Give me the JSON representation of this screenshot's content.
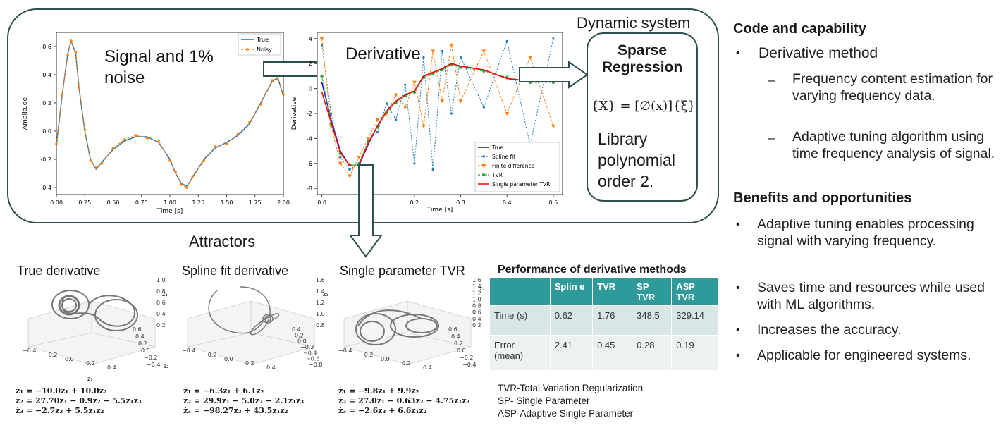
{
  "dynamic_system": {
    "title": "Dynamic system",
    "signal_label": "Signal and 1% noise",
    "derivative_label": "Derivative",
    "regression": {
      "title": "Sparse Regression",
      "equation": "{Ẋ} = [∅(x)]{ξ}",
      "library": "Library polynomial order 2."
    }
  },
  "signal_plot": {
    "xlabel": "Time [s]",
    "ylabel": "Amplitude",
    "xticks": [
      "0.00",
      "0.25",
      "0.50",
      "0.75",
      "1.00",
      "1.25",
      "1.50",
      "1.75",
      "2.00"
    ],
    "yticks": [
      "0.6",
      "0.4",
      "0.2",
      "0.0",
      "-0.2",
      "-0.4"
    ],
    "legend": [
      "True",
      "Noisy"
    ]
  },
  "derivative_plot": {
    "xlabel": "Time [s]",
    "ylabel": "Derivative",
    "xticks": [
      "0.0",
      "0.1",
      "0.2",
      "0.3",
      "0.4",
      "0.5"
    ],
    "yticks": [
      "4",
      "2",
      "0",
      "-2",
      "-4",
      "-6",
      "-8"
    ],
    "legend": [
      "True",
      "Spline fit",
      "Finite difference",
      "TVR",
      "Single parameter TVR"
    ]
  },
  "attractors": {
    "title": "Attractors",
    "panels": [
      {
        "title": "True derivative",
        "eq": [
          "ż₁ = −10.0z₁ + 10.0z₂",
          "ż₂ = 27.70z₁ − 0.9z₂ − 5.5z₁z₃",
          "ż₃ = −2.7z₃ + 5.5z₁z₂"
        ],
        "zticks": [
          "1.0",
          "0.8",
          "0.6",
          "0.4",
          "0.2"
        ],
        "yticks": [
          "0.6",
          "0.4",
          "0.2",
          "0.0",
          "−0.2",
          "−0.4"
        ],
        "xticks": [
          "−0.4",
          "−0.2",
          "0.0",
          "0.2",
          "0.4"
        ]
      },
      {
        "title": "Spline fit derivative",
        "eq": [
          "ż₁ = −6.3z₁ + 6.1z₂",
          "ż₂ = 29.9z₁ − 5.0z₂ − 2.1z₁z₃",
          "ż₃ = −98.27z₃ + 43.5z₁z₂"
        ],
        "zticks": [
          "1.6",
          "1.4",
          "1.2",
          "1.0",
          "0.8"
        ],
        "yticks": [
          "0.4",
          "0.2",
          "0.0",
          "−0.2",
          "−0.4",
          "−0.6",
          "−0.8"
        ],
        "xticks": [
          "−0.4",
          "−0.2",
          "0.0",
          "0.2",
          "0.4"
        ]
      },
      {
        "title": "Single parameter TVR",
        "eq": [
          "ż₁ = −9.8z₁ + 9.9z₂",
          "ż₂ = 27.0z₁ − 0.63z₂ − 4.75z₁z₃",
          "ż₃ = −2.6z₃ + 6.6z₁z₂"
        ],
        "zticks": [
          "1.6",
          "1.4",
          "1.2",
          "1.0",
          "0.8",
          "0.6",
          "0.4",
          "0.2"
        ],
        "yticks": [
          "0.6",
          "0.4",
          "0.2",
          "0.0",
          "−0.2",
          "−0.4"
        ],
        "xticks": [
          "−0.4",
          "−0.2",
          "0.0",
          "0.2",
          "0.4"
        ]
      }
    ]
  },
  "performance": {
    "title": "Performance of derivative methods",
    "headers": [
      "",
      "Splin e",
      "TVR",
      "SP TVR",
      "ASP TVR"
    ],
    "rows": [
      [
        "Time (s)",
        "0.62",
        "1.76",
        "348.5",
        "329.14"
      ],
      [
        "Error (mean)",
        "2.41",
        "0.45",
        "0.28",
        "0.19"
      ]
    ],
    "notes": [
      "TVR-Total Variation Regularization",
      "SP- Single Parameter",
      "ASP-Adaptive Single Parameter"
    ]
  },
  "right_panel": {
    "code_heading": "Code and capability",
    "code_bullet": "Derivative method",
    "code_sub": [
      "Frequency content estimation for varying frequency data.",
      "Adaptive tuning algorithm using time frequency analysis of signal."
    ],
    "benefits_heading": "Benefits and opportunities",
    "benefits": [
      "Adaptive tuning enables processing signal with varying frequency.",
      "Saves time and resources while used with ML algorithms.",
      "Increases the accuracy.",
      "Applicable for engineered systems."
    ]
  },
  "chart_data": [
    {
      "type": "line",
      "title": "",
      "xlabel": "Time [s]",
      "ylabel": "Amplitude",
      "xlim": [
        0,
        2.0
      ],
      "ylim": [
        -0.45,
        0.7
      ],
      "series": [
        {
          "name": "True",
          "x": [
            0,
            0.05,
            0.1,
            0.13,
            0.17,
            0.2,
            0.25,
            0.3,
            0.35,
            0.4,
            0.5,
            0.6,
            0.7,
            0.8,
            0.9,
            1.0,
            1.05,
            1.1,
            1.15,
            1.2,
            1.3,
            1.4,
            1.5,
            1.6,
            1.7,
            1.8,
            1.9,
            1.95,
            2.0
          ],
          "y": [
            -0.1,
            0.25,
            0.55,
            0.64,
            0.55,
            0.3,
            0.0,
            -0.2,
            -0.27,
            -0.22,
            -0.13,
            -0.07,
            -0.04,
            -0.04,
            -0.08,
            -0.2,
            -0.3,
            -0.37,
            -0.39,
            -0.33,
            -0.2,
            -0.12,
            -0.08,
            -0.03,
            0.05,
            0.2,
            0.35,
            0.38,
            0.25
          ]
        },
        {
          "name": "Noisy",
          "x": [
            0,
            0.05,
            0.1,
            0.13,
            0.17,
            0.2,
            0.25,
            0.3,
            0.35,
            0.4,
            0.5,
            0.6,
            0.7,
            0.8,
            0.9,
            1.0,
            1.05,
            1.1,
            1.15,
            1.2,
            1.3,
            1.4,
            1.5,
            1.6,
            1.7,
            1.8,
            1.9,
            1.95,
            2.0
          ],
          "y": [
            -0.09,
            0.26,
            0.54,
            0.64,
            0.56,
            0.31,
            0.01,
            -0.21,
            -0.26,
            -0.23,
            -0.12,
            -0.06,
            -0.03,
            -0.05,
            -0.07,
            -0.21,
            -0.29,
            -0.38,
            -0.4,
            -0.32,
            -0.21,
            -0.11,
            -0.09,
            -0.02,
            0.06,
            0.19,
            0.36,
            0.37,
            0.26
          ]
        }
      ]
    },
    {
      "type": "line",
      "title": "",
      "xlabel": "Time [s]",
      "ylabel": "Derivative",
      "xlim": [
        -0.01,
        0.52
      ],
      "ylim": [
        -8.5,
        4.5
      ],
      "series": [
        {
          "name": "True",
          "x": [
            0.0,
            0.02,
            0.04,
            0.06,
            0.08,
            0.1,
            0.12,
            0.14,
            0.16,
            0.18,
            0.2,
            0.22,
            0.24,
            0.26,
            0.28,
            0.3,
            0.35,
            0.4,
            0.45,
            0.5
          ],
          "y": [
            0.5,
            -2.5,
            -5.0,
            -6.2,
            -6.2,
            -4.5,
            -3.0,
            -1.8,
            -1.0,
            -0.5,
            -0.2,
            1.0,
            1.3,
            1.6,
            2.0,
            1.8,
            1.5,
            0.8,
            0.6,
            0.6
          ]
        },
        {
          "name": "Spline fit",
          "x": [
            0.0,
            0.02,
            0.04,
            0.06,
            0.08,
            0.1,
            0.12,
            0.14,
            0.16,
            0.18,
            0.2,
            0.22,
            0.24,
            0.26,
            0.28,
            0.3,
            0.35,
            0.4,
            0.45,
            0.5
          ],
          "y": [
            3.5,
            -2.0,
            -5.5,
            -6.5,
            -6.0,
            -4.2,
            -3.5,
            -1.2,
            -2.5,
            0.3,
            -6.0,
            2.5,
            -6.5,
            3.0,
            -2.0,
            2.5,
            -1.5,
            3.8,
            -4.5,
            4.0
          ]
        },
        {
          "name": "Finite difference",
          "x": [
            0.0,
            0.02,
            0.04,
            0.06,
            0.08,
            0.1,
            0.12,
            0.14,
            0.16,
            0.18,
            0.2,
            0.22,
            0.24,
            0.26,
            0.28,
            0.3,
            0.35,
            0.4,
            0.45,
            0.5
          ],
          "y": [
            4.0,
            -3.0,
            -6.0,
            -7.0,
            -5.5,
            -4.0,
            -2.5,
            -2.0,
            -0.5,
            -1.5,
            0.5,
            -3.0,
            3.0,
            -1.0,
            3.5,
            -1.0,
            3.0,
            -2.0,
            2.5,
            -3.0
          ]
        },
        {
          "name": "TVR",
          "x": [
            0.0,
            0.02,
            0.04,
            0.06,
            0.08,
            0.1,
            0.12,
            0.14,
            0.16,
            0.18,
            0.2,
            0.22,
            0.24,
            0.26,
            0.28,
            0.3,
            0.35,
            0.4,
            0.45,
            0.5
          ],
          "y": [
            1.0,
            -2.8,
            -5.2,
            -6.1,
            -6.1,
            -4.3,
            -3.1,
            -1.9,
            -1.1,
            -0.6,
            -0.3,
            0.9,
            1.2,
            1.5,
            1.9,
            1.7,
            1.4,
            0.9,
            0.5,
            0.5
          ]
        },
        {
          "name": "Single parameter TVR",
          "x": [
            0.0,
            0.02,
            0.04,
            0.06,
            0.08,
            0.1,
            0.12,
            0.14,
            0.16,
            0.18,
            0.2,
            0.22,
            0.24,
            0.26,
            0.28,
            0.3,
            0.35,
            0.4,
            0.45,
            0.5
          ],
          "y": [
            -0.3,
            -2.7,
            -5.1,
            -6.2,
            -6.2,
            -4.4,
            -3.0,
            -1.8,
            -1.0,
            -0.5,
            -0.2,
            1.0,
            1.3,
            1.6,
            2.0,
            1.8,
            1.5,
            0.8,
            0.6,
            0.6
          ]
        }
      ]
    }
  ]
}
